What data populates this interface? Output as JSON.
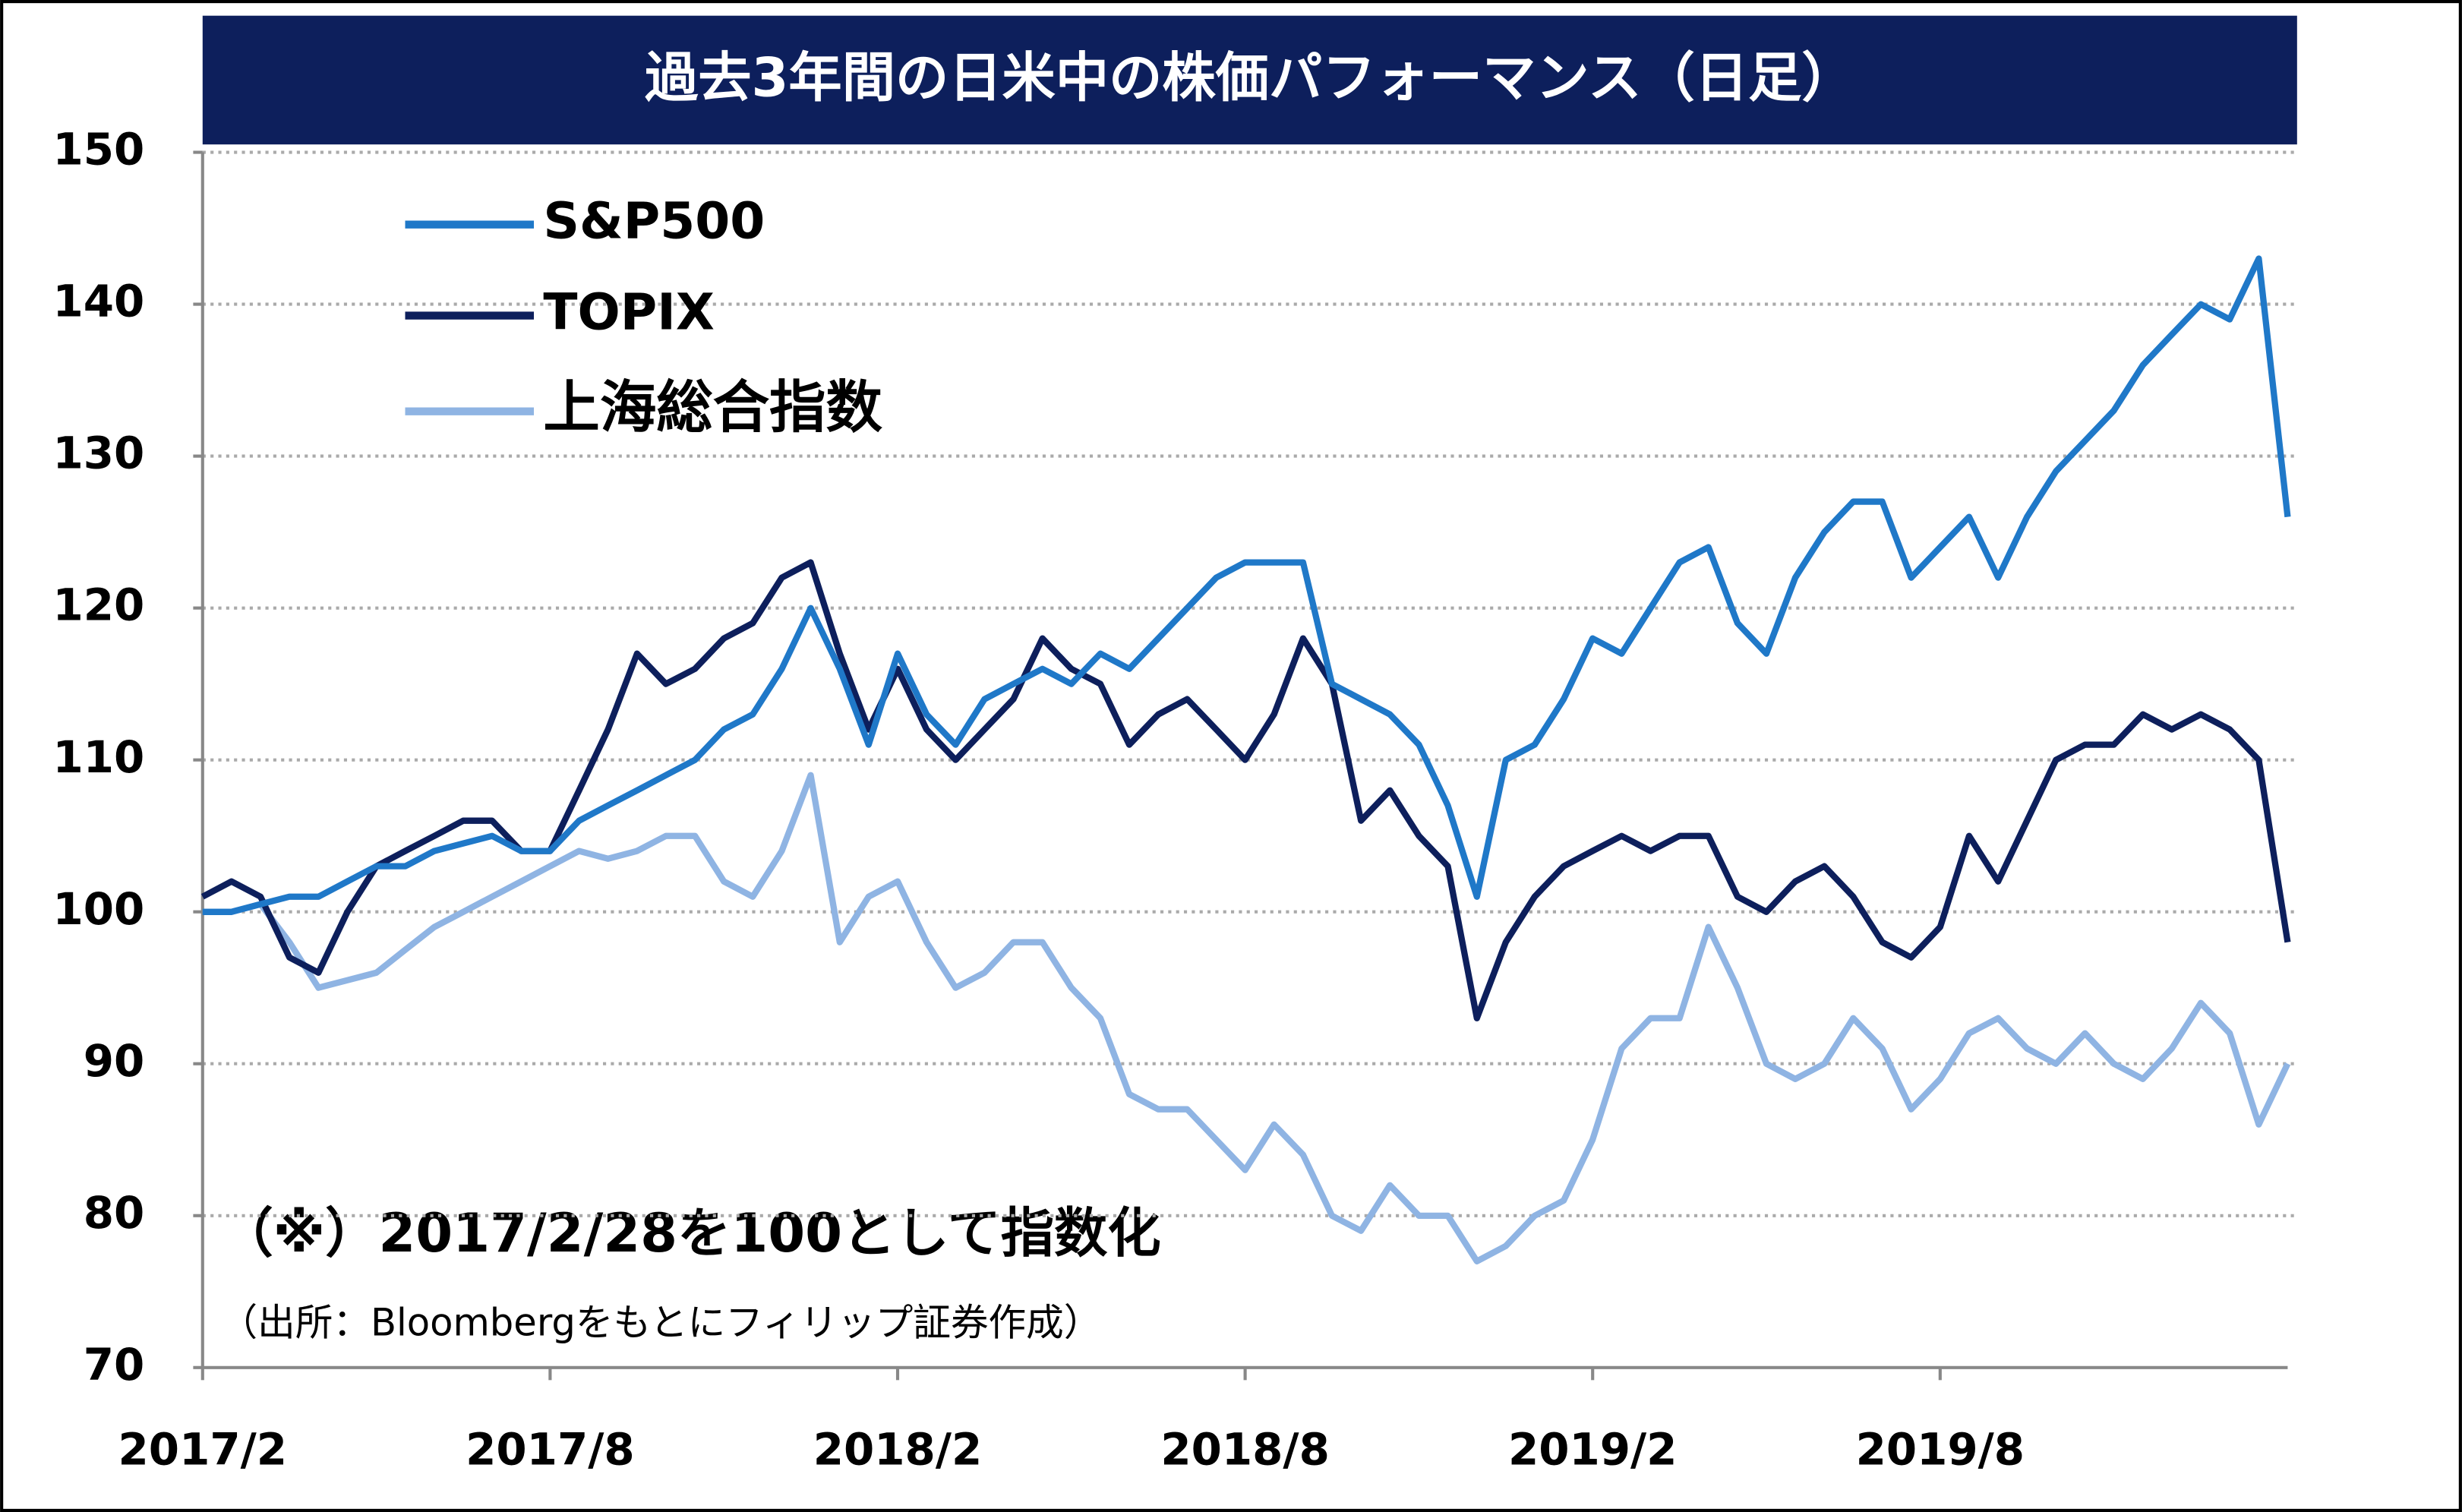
{
  "chart_data": {
    "type": "line",
    "title": "過去3年間の日米中の株価パフォーマンス（日足）",
    "annotations": [
      "（※）2017/2/28を100として指数化",
      "（出所：Bloombergをもとにフィリップ証券作成）"
    ],
    "categories": [
      "2017/2",
      null,
      null,
      null,
      null,
      null,
      null,
      null,
      null,
      null,
      null,
      null,
      "2017/8",
      null,
      null,
      null,
      null,
      null,
      null,
      null,
      null,
      null,
      null,
      null,
      "2018/2",
      null,
      null,
      null,
      null,
      null,
      null,
      null,
      null,
      null,
      null,
      null,
      "2018/8",
      null,
      null,
      null,
      null,
      null,
      null,
      null,
      null,
      null,
      null,
      null,
      "2019/2",
      null,
      null,
      null,
      null,
      null,
      null,
      null,
      null,
      null,
      null,
      null,
      "2019/8",
      null,
      null,
      null,
      null,
      null,
      null,
      null,
      null,
      null,
      null,
      null,
      null
    ],
    "series": [
      {
        "name": "S&P500",
        "color": "#1f78c8",
        "values": [
          100,
          100,
          100.5,
          101,
          101,
          102,
          103,
          103,
          104,
          104.5,
          105,
          104,
          104,
          106,
          107,
          108,
          109,
          110,
          112,
          113,
          116,
          120,
          116,
          111,
          117,
          113,
          111,
          114,
          115,
          116,
          115,
          117,
          116,
          118,
          120,
          122,
          123,
          123,
          123,
          115,
          114,
          113,
          111,
          107,
          101,
          110,
          111,
          114,
          118,
          117,
          120,
          123,
          124,
          119,
          117,
          122,
          125,
          127,
          127,
          122,
          124,
          126,
          122,
          126,
          129,
          131,
          133,
          136,
          138,
          140,
          139,
          143,
          126
        ]
      },
      {
        "name": "TOPIX",
        "color": "#0d1f5c",
        "values": [
          101,
          102,
          101,
          97,
          96,
          100,
          103,
          104,
          105,
          106,
          106,
          104,
          104,
          108,
          112,
          117,
          115,
          116,
          118,
          119,
          122,
          123,
          117,
          112,
          116,
          112,
          110,
          112,
          114,
          118,
          116,
          115,
          111,
          113,
          114,
          112,
          110,
          113,
          118,
          115,
          106,
          108,
          105,
          103,
          93,
          98,
          101,
          103,
          104,
          105,
          104,
          105,
          105,
          101,
          100,
          102,
          103,
          101,
          98,
          97,
          99,
          105,
          102,
          106,
          110,
          111,
          111,
          113,
          112,
          113,
          112,
          110,
          98
        ]
      },
      {
        "name": "上海総合指数",
        "color": "#8fb4e3",
        "values": [
          100,
          100,
          100.5,
          98,
          95,
          95.5,
          96,
          97.5,
          99,
          100,
          101,
          102,
          103,
          104,
          103.5,
          104,
          105,
          105,
          102,
          101,
          104,
          109,
          98,
          101,
          102,
          98,
          95,
          96,
          98,
          98,
          95,
          93,
          88,
          87,
          87,
          85,
          83,
          86,
          84,
          80,
          79,
          82,
          80,
          80,
          77,
          78,
          80,
          81,
          85,
          91,
          93,
          93,
          99,
          95,
          90,
          89,
          90,
          93,
          91,
          87,
          89,
          92,
          93,
          91,
          90,
          92,
          90,
          89,
          91,
          94,
          92,
          86,
          90
        ]
      }
    ],
    "ylim": [
      70,
      150
    ],
    "yticks": [
      70,
      80,
      90,
      100,
      110,
      120,
      130,
      140,
      150
    ],
    "grid": true
  }
}
